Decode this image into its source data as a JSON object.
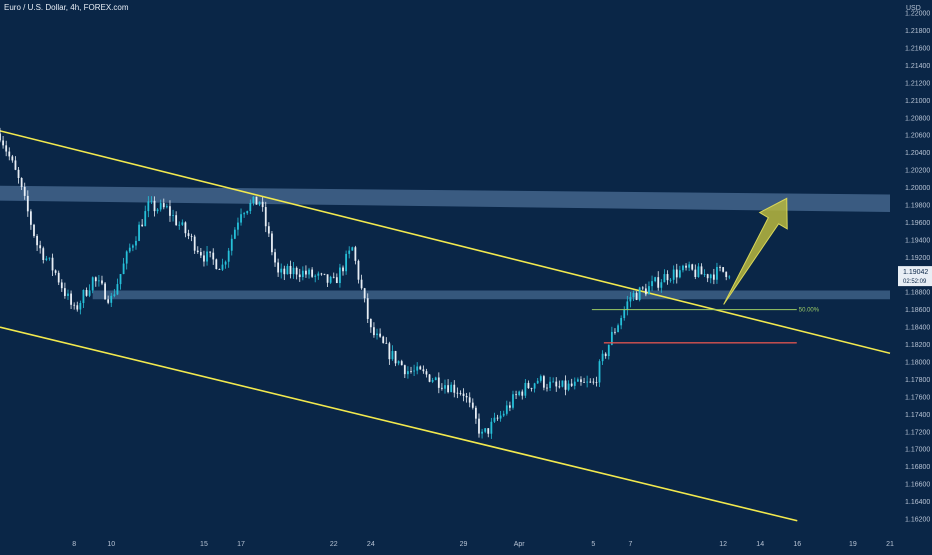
{
  "header": {
    "symbol_title": "Euro / U.S. Dollar, 4h, FOREX.com",
    "price_unit": "USD"
  },
  "colors": {
    "background": "#0a2647",
    "up_candle": "#26c0d9",
    "down_candle": "#e8eef5",
    "channel_line": "#f2e94e",
    "zone": "#5a7fa8",
    "arrow": "#b9b83e",
    "support_line": "#9ccc65",
    "stop_line": "#d9534f",
    "price_label": "#e8eef5"
  },
  "chart_data": {
    "type": "candlestick",
    "y_ticks": [
      "1.22000",
      "1.21800",
      "1.21600",
      "1.21400",
      "1.21200",
      "1.21000",
      "1.20800",
      "1.20600",
      "1.20400",
      "1.20200",
      "1.20000",
      "1.19800",
      "1.19600",
      "1.19400",
      "1.19200",
      "1.19000",
      "1.18800",
      "1.18600",
      "1.18400",
      "1.18200",
      "1.18000",
      "1.17800",
      "1.17600",
      "1.17400",
      "1.17200",
      "1.17000",
      "1.16800",
      "1.16600",
      "1.16400",
      "1.16200"
    ],
    "x_ticks": [
      "8",
      "10",
      "15",
      "17",
      "22",
      "24",
      "29",
      "Apr",
      "5",
      "7",
      "12",
      "14",
      "16",
      "19",
      "21"
    ],
    "x_dates": [
      "2021-03-08",
      "2021-03-10",
      "2021-03-15",
      "2021-03-17",
      "2021-03-22",
      "2021-03-24",
      "2021-03-29",
      "2021-04-01",
      "2021-04-05",
      "2021-04-07",
      "2021-04-12",
      "2021-04-14",
      "2021-04-16",
      "2021-04-19",
      "2021-04-21"
    ],
    "ylim": [
      1.1612,
      1.2215
    ],
    "current_price": {
      "value": "1.19042",
      "countdown": "02:52:09"
    },
    "fib_label": "50.00%",
    "path_anchors": [
      {
        "date": "2021-03-04",
        "close": 1.2062
      },
      {
        "date": "2021-03-05",
        "close": 1.2008
      },
      {
        "date": "2021-03-06",
        "close": 1.1935
      },
      {
        "date": "2021-03-07",
        "close": 1.1902
      },
      {
        "date": "2021-03-08",
        "close": 1.1858
      },
      {
        "date": "2021-03-09",
        "close": 1.1895
      },
      {
        "date": "2021-03-10",
        "close": 1.1872
      },
      {
        "date": "2021-03-11",
        "close": 1.193
      },
      {
        "date": "2021-03-12",
        "close": 1.1978
      },
      {
        "date": "2021-03-13",
        "close": 1.1975
      },
      {
        "date": "2021-03-15",
        "close": 1.1922
      },
      {
        "date": "2021-03-16",
        "close": 1.191
      },
      {
        "date": "2021-03-17",
        "close": 1.1975
      },
      {
        "date": "2021-03-18",
        "close": 1.1985
      },
      {
        "date": "2021-03-19",
        "close": 1.19
      },
      {
        "date": "2021-03-20",
        "close": 1.1905
      },
      {
        "date": "2021-03-22",
        "close": 1.189
      },
      {
        "date": "2021-03-23",
        "close": 1.193
      },
      {
        "date": "2021-03-24",
        "close": 1.1835
      },
      {
        "date": "2021-03-25",
        "close": 1.181
      },
      {
        "date": "2021-03-26",
        "close": 1.179
      },
      {
        "date": "2021-03-27",
        "close": 1.1785
      },
      {
        "date": "2021-03-29",
        "close": 1.1765
      },
      {
        "date": "2021-03-30",
        "close": 1.1715
      },
      {
        "date": "2021-03-31",
        "close": 1.1738
      },
      {
        "date": "2021-04-01",
        "close": 1.1765
      },
      {
        "date": "2021-04-02",
        "close": 1.178
      },
      {
        "date": "2021-04-03",
        "close": 1.177
      },
      {
        "date": "2021-04-05",
        "close": 1.1775
      },
      {
        "date": "2021-04-06",
        "close": 1.183
      },
      {
        "date": "2021-04-07",
        "close": 1.1875
      },
      {
        "date": "2021-04-08",
        "close": 1.1885
      },
      {
        "date": "2021-04-09",
        "close": 1.19
      },
      {
        "date": "2021-04-10",
        "close": 1.1905
      },
      {
        "date": "2021-04-11",
        "close": 1.19
      },
      {
        "date": "2021-04-12",
        "close": 1.1904
      }
    ],
    "channel_upper": [
      {
        "date": "2021-03-04",
        "price": 1.2065
      },
      {
        "date": "2021-04-21",
        "price": 1.181
      }
    ],
    "channel_lower": [
      {
        "date": "2021-03-04",
        "price": 1.184
      },
      {
        "date": "2021-04-16",
        "price": 1.1618
      }
    ],
    "zones": [
      {
        "from": "2021-03-04",
        "to": "2021-04-21",
        "top_start": 1.2002,
        "bottom_start": 1.1985,
        "top_end": 1.1992,
        "bottom_end": 1.1972
      },
      {
        "from": "2021-03-09",
        "to": "2021-04-21",
        "top_start": 1.1882,
        "bottom_start": 1.1872,
        "top_end": 1.1882,
        "bottom_end": 1.1872
      }
    ],
    "support_line": {
      "from": "2021-04-06",
      "to": "2021-04-15",
      "price": 1.186
    },
    "stop_line": {
      "from": "2021-04-06",
      "to": "2021-04-15",
      "price": 1.1822
    },
    "arrow": {
      "from": {
        "date": "2021-04-13",
        "price": 1.1866
      },
      "to": {
        "date": "2021-04-15",
        "price": 1.1983
      }
    }
  }
}
